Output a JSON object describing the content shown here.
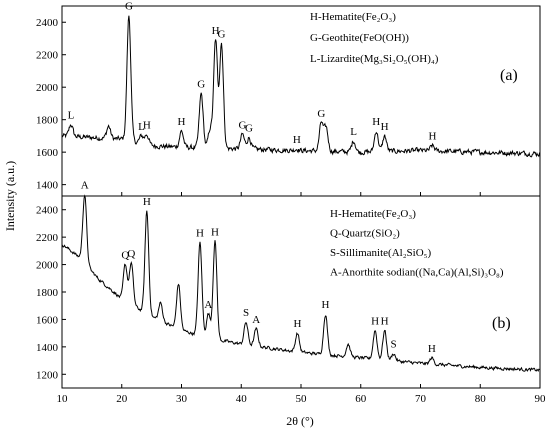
{
  "chart_data": {
    "type": "line",
    "xlabel": "2θ (°)",
    "ylabel": "Intensity (a.u.)",
    "xlim": [
      10,
      90
    ],
    "x_ticks": [
      10,
      20,
      30,
      40,
      50,
      60,
      70,
      80,
      90
    ],
    "grid": false,
    "panels": [
      {
        "tag": "(a)",
        "ylim": [
          1330,
          2500
        ],
        "y_ticks": [
          1400,
          1600,
          1800,
          2000,
          2200,
          2400
        ],
        "legend": [
          "H-Hematite(Fe₂O₃)",
          "G-Geothite(FeO(OH))",
          "L-Lizardite(Mg₃Si₂O₅(OH)₄)"
        ],
        "baseline": [
          [
            10,
            1700
          ],
          [
            15,
            1690
          ],
          [
            20,
            1680
          ],
          [
            25,
            1640
          ],
          [
            30,
            1630
          ],
          [
            40,
            1620
          ],
          [
            50,
            1610
          ],
          [
            60,
            1600
          ],
          [
            70,
            1610
          ],
          [
            80,
            1600
          ],
          [
            90,
            1590
          ]
        ],
        "noise": 24,
        "peaks": [
          {
            "x": 11.5,
            "y": 1770,
            "label": "L"
          },
          {
            "x": 17.8,
            "y": 1760,
            "label": ""
          },
          {
            "x": 21.2,
            "y": 2440,
            "label": "G"
          },
          {
            "x": 23.3,
            "y": 1700,
            "label": "L"
          },
          {
            "x": 24.2,
            "y": 1710,
            "label": "H"
          },
          {
            "x": 30.0,
            "y": 1730,
            "label": "H"
          },
          {
            "x": 33.3,
            "y": 1960,
            "label": "G"
          },
          {
            "x": 34.8,
            "y": 1740,
            "label": ""
          },
          {
            "x": 35.7,
            "y": 2290,
            "label": "H"
          },
          {
            "x": 36.7,
            "y": 2270,
            "label": "G"
          },
          {
            "x": 40.2,
            "y": 1710,
            "label": "G"
          },
          {
            "x": 41.3,
            "y": 1690,
            "label": "G"
          },
          {
            "x": 49.3,
            "y": 1620,
            "label": "H"
          },
          {
            "x": 53.4,
            "y": 1780,
            "label": "G"
          },
          {
            "x": 54.2,
            "y": 1750,
            "label": ""
          },
          {
            "x": 58.8,
            "y": 1670,
            "label": "L"
          },
          {
            "x": 62.6,
            "y": 1730,
            "label": "H"
          },
          {
            "x": 64.0,
            "y": 1700,
            "label": "H"
          },
          {
            "x": 72.0,
            "y": 1640,
            "label": "H"
          }
        ]
      },
      {
        "tag": "(b)",
        "ylim": [
          1100,
          2500
        ],
        "y_ticks": [
          1200,
          1400,
          1600,
          1800,
          2000,
          2200,
          2400
        ],
        "legend": [
          "H-Hematite(Fe₂O₃)",
          "Q-Quartz(SiO₂)",
          "S-Sillimanite(Al₂SiO₅)",
          "A-Anorthite sodian((Na,Ca)(Al,Si)₃O₈)"
        ],
        "baseline": [
          [
            10,
            2150
          ],
          [
            13,
            2050
          ],
          [
            16,
            1900
          ],
          [
            20,
            1750
          ],
          [
            25,
            1620
          ],
          [
            30,
            1520
          ],
          [
            35,
            1460
          ],
          [
            40,
            1420
          ],
          [
            50,
            1360
          ],
          [
            60,
            1320
          ],
          [
            70,
            1280
          ],
          [
            80,
            1250
          ],
          [
            90,
            1230
          ]
        ],
        "noise": 18,
        "peaks": [
          {
            "x": 13.8,
            "y": 2510,
            "label": "A"
          },
          {
            "x": 20.6,
            "y": 2000,
            "label": "Q"
          },
          {
            "x": 21.6,
            "y": 2010,
            "label": "Q"
          },
          {
            "x": 24.2,
            "y": 2390,
            "label": "H"
          },
          {
            "x": 26.5,
            "y": 1720,
            "label": ""
          },
          {
            "x": 29.5,
            "y": 1860,
            "label": ""
          },
          {
            "x": 33.1,
            "y": 2160,
            "label": "H"
          },
          {
            "x": 34.5,
            "y": 1640,
            "label": "A"
          },
          {
            "x": 35.6,
            "y": 2170,
            "label": "H"
          },
          {
            "x": 40.8,
            "y": 1580,
            "label": "S"
          },
          {
            "x": 42.5,
            "y": 1530,
            "label": "A"
          },
          {
            "x": 49.4,
            "y": 1500,
            "label": "H"
          },
          {
            "x": 54.1,
            "y": 1640,
            "label": "H"
          },
          {
            "x": 57.9,
            "y": 1420,
            "label": ""
          },
          {
            "x": 62.4,
            "y": 1520,
            "label": "H"
          },
          {
            "x": 64.0,
            "y": 1520,
            "label": "H"
          },
          {
            "x": 65.5,
            "y": 1350,
            "label": "S"
          },
          {
            "x": 71.9,
            "y": 1320,
            "label": "H"
          }
        ]
      }
    ]
  }
}
